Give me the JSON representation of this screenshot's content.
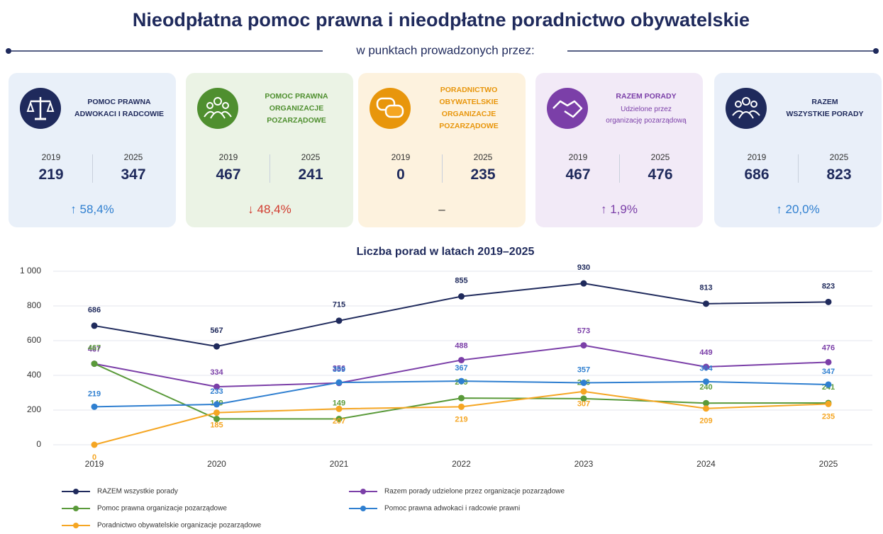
{
  "header": {
    "title": "Nieodpłatna pomoc prawna i nieodpłatne poradnictwo obywatelskie",
    "subtitle": "w punktach prowadzonych przez:"
  },
  "cards": [
    {
      "title": [
        "POMOC PRAWNA",
        "ADWOKACI I RADCOWIE"
      ],
      "year_from": 2019,
      "value_from": 219,
      "year_to": 2025,
      "value_to": 347,
      "change": "↑ 58,4%"
    },
    {
      "title": [
        "POMOC PRAWNA",
        "ORGANIZACJE",
        "POZARZĄDOWE"
      ],
      "year_from": 2019,
      "value_from": 467,
      "year_to": 2025,
      "value_to": 241,
      "change": "↓ 48,4%"
    },
    {
      "title": [
        "PORADNICTWO",
        "OBYWATELSKIE",
        "ORGANIZACJE",
        "POZARZĄDOWE"
      ],
      "year_from": 2019,
      "value_from": 0,
      "year_to": 2025,
      "value_to": 235,
      "change": "–"
    },
    {
      "title": [
        "RAZEM PORADY"
      ],
      "subtitle": [
        "Udzielone przez",
        "organizację pozarządową"
      ],
      "year_from": 2019,
      "value_from": 467,
      "year_to": 2025,
      "value_to": 476,
      "change": "↑ 1,9%"
    },
    {
      "title": [
        "RAZEM",
        "WSZYSTKIE PORADY"
      ],
      "year_from": 2019,
      "value_from": 686,
      "year_to": 2025,
      "value_to": 823,
      "change": "↑ 20,0%"
    }
  ],
  "chart_data": {
    "type": "line",
    "title": "Liczba porad w latach 2019–2025",
    "categories": [
      "2019",
      "2020",
      "2021",
      "2022",
      "2023",
      "2024",
      "2025"
    ],
    "series": [
      {
        "name": "RAZEM wszystkie porady",
        "color": "#1f2a5c",
        "values": [
          686,
          567,
          715,
          855,
          930,
          813,
          823
        ]
      },
      {
        "name": "Razem porady udzielone przez organizacje pozarządowe",
        "color": "#7b3fa8",
        "values": [
          467,
          334,
          356,
          488,
          573,
          449,
          476
        ]
      },
      {
        "name": "Pomoc prawna organizacje pozarządowe",
        "color": "#5a9a3a",
        "values": [
          467,
          149,
          149,
          269,
          266,
          240,
          241
        ]
      },
      {
        "name": "Pomoc prawna adwokaci i radcowie prawni",
        "color": "#2f7fd0",
        "values": [
          219,
          233,
          359,
          367,
          357,
          364,
          347
        ]
      },
      {
        "name": "Poradnictwo obywatelskie organizacje pozarządowe",
        "color": "#f5a623",
        "values": [
          0,
          185,
          207,
          219,
          307,
          209,
          235
        ]
      }
    ],
    "ylim": [
      0,
      1000
    ],
    "yticks": [
      0,
      200,
      400,
      600,
      800,
      {
        "value": 1000,
        "label": "1 000"
      }
    ],
    "grid": true
  }
}
